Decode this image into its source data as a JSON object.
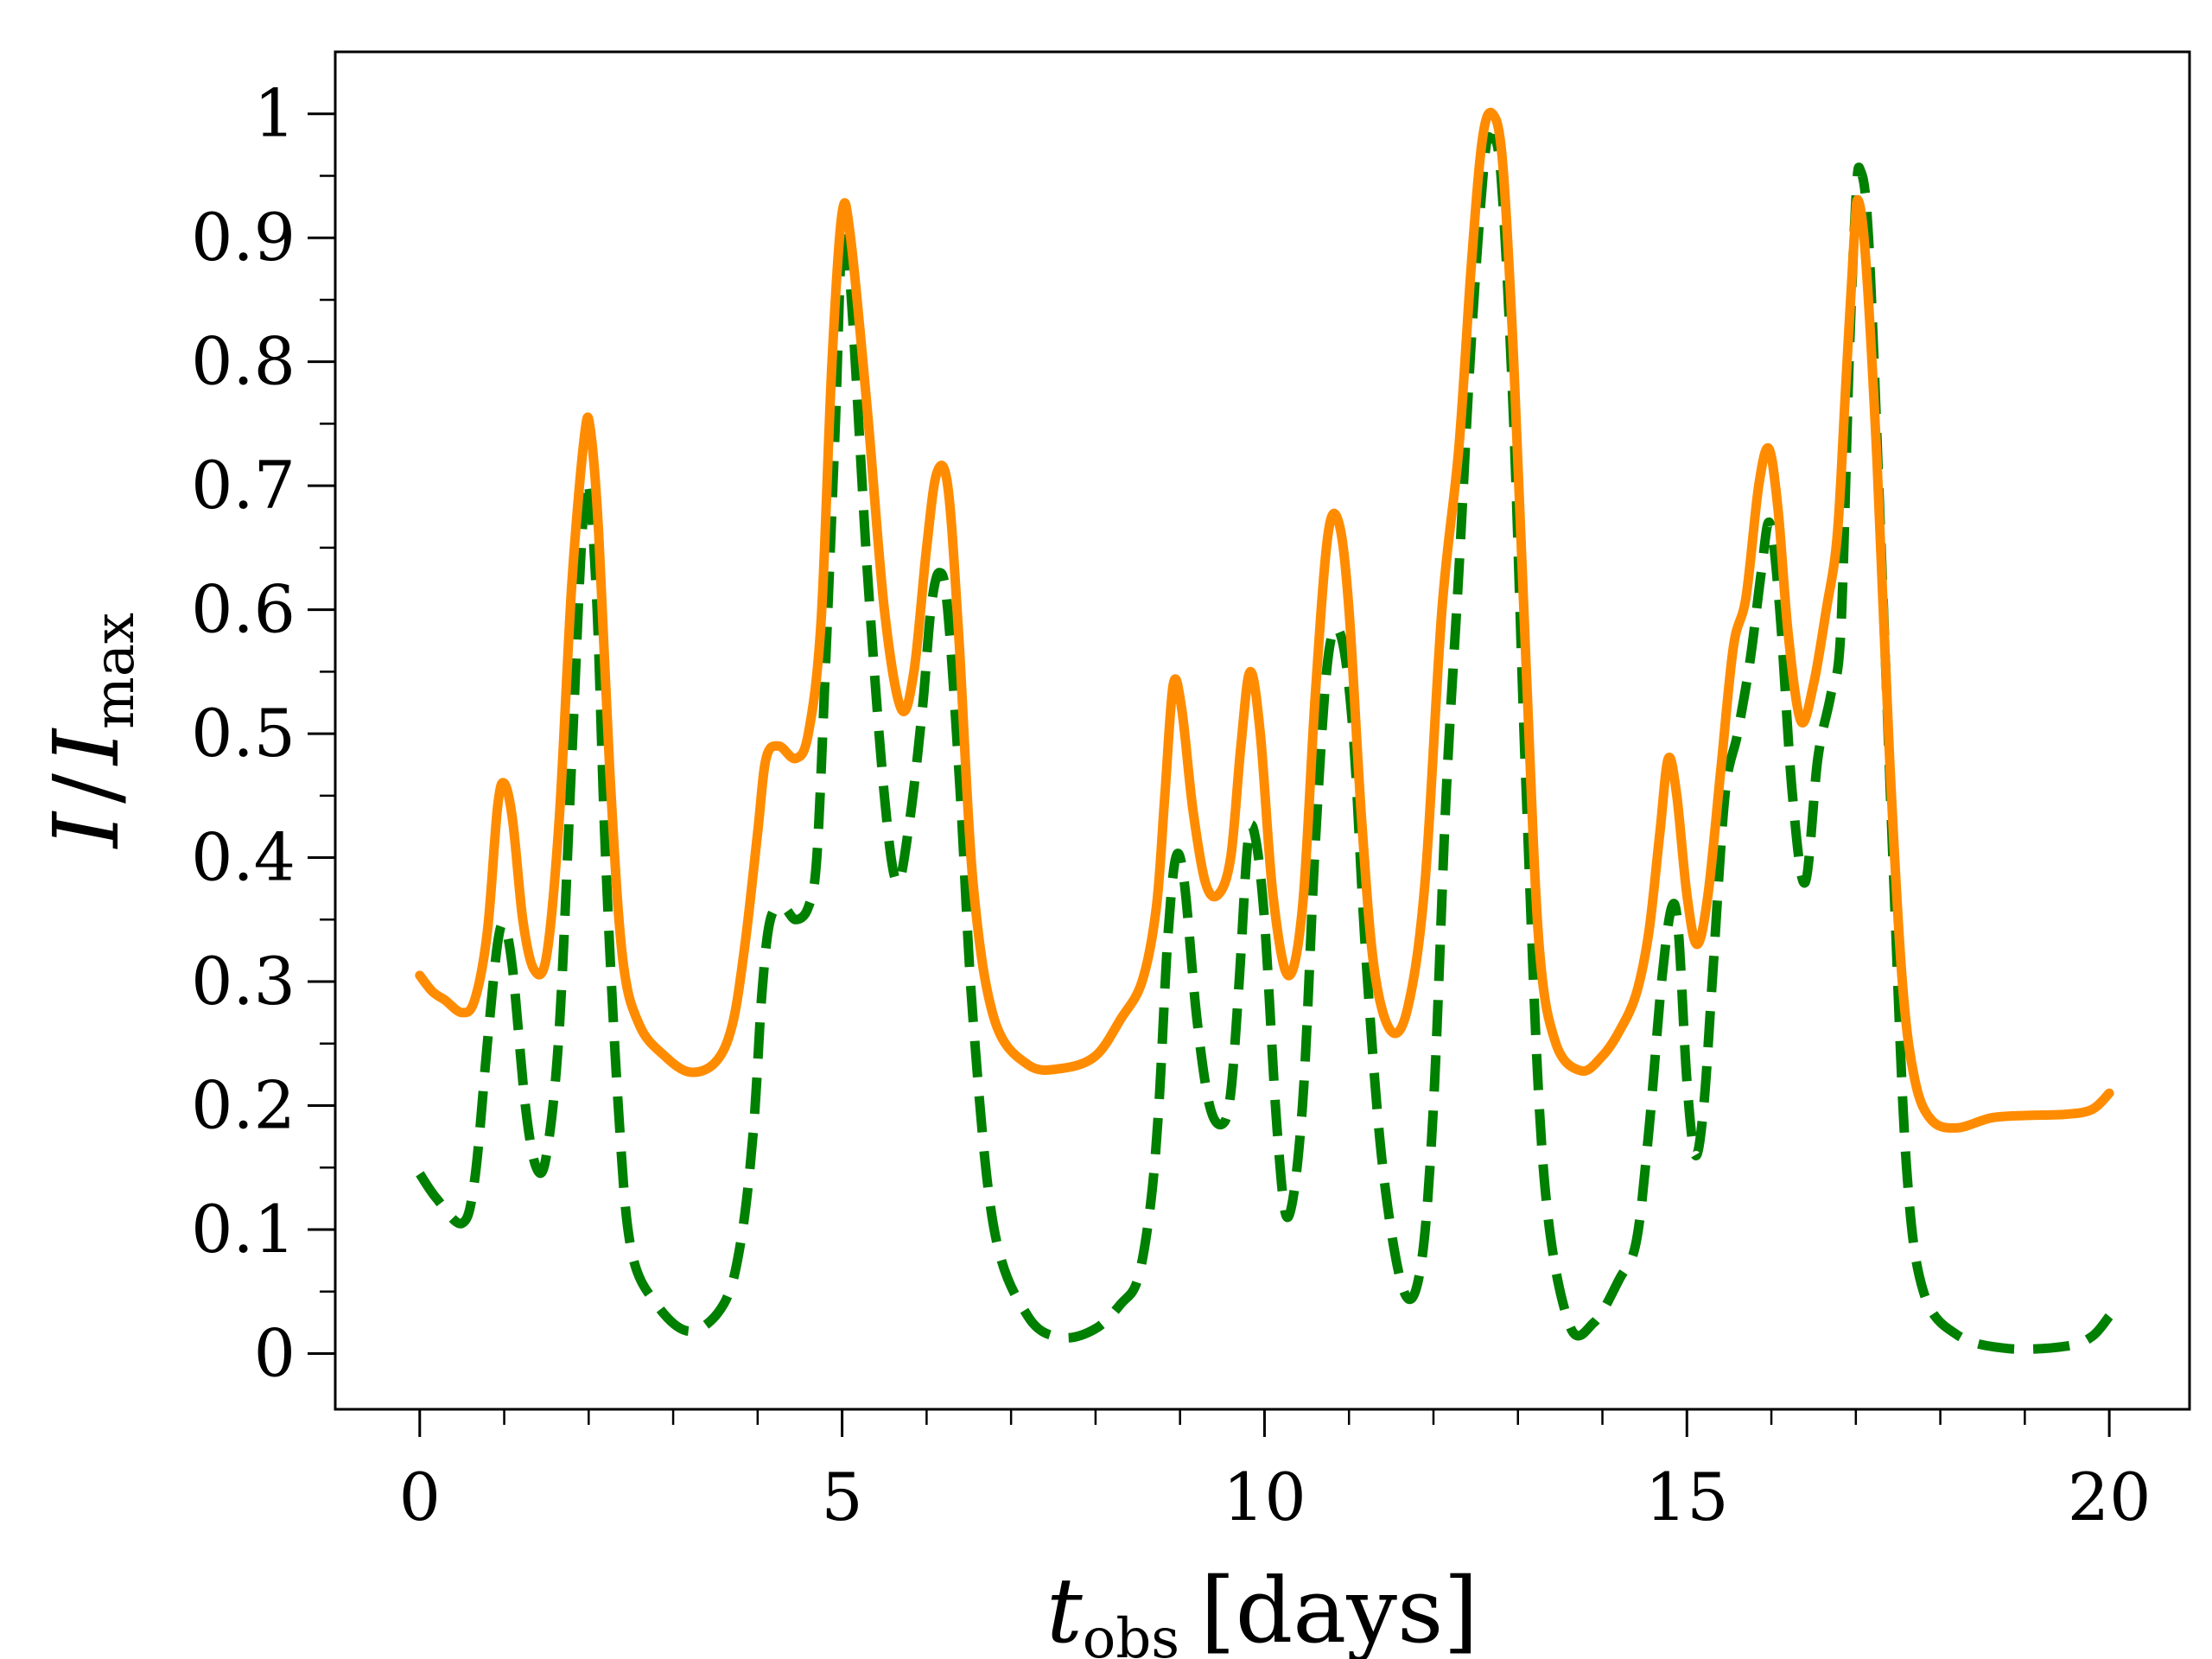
{
  "chart_data": {
    "type": "line",
    "title": "",
    "xlabel": {
      "main": "t",
      "sub": "obs",
      "unit": "[days]"
    },
    "ylabel": {
      "left": "I",
      "slash": "/",
      "right": "I",
      "sub": "max"
    },
    "xlim": [
      -1,
      20.95
    ],
    "ylim": [
      -0.045,
      1.05
    ],
    "x_major_ticks": [
      0,
      5,
      10,
      15,
      20
    ],
    "x_minor_ticks": [
      1,
      2,
      3,
      4,
      6,
      7,
      8,
      9,
      11,
      12,
      13,
      14,
      16,
      17,
      18,
      19
    ],
    "x_tick_labels": [
      "0",
      "5",
      "10",
      "15",
      "20"
    ],
    "y_major_ticks": [
      0,
      0.1,
      0.2,
      0.3,
      0.4,
      0.5,
      0.6,
      0.7,
      0.8,
      0.9,
      1
    ],
    "y_minor_ticks": [
      0.05,
      0.15,
      0.25,
      0.35,
      0.45,
      0.55,
      0.65,
      0.75,
      0.85,
      0.95
    ],
    "y_tick_labels": [
      "0",
      "0.1",
      "0.2",
      "0.3",
      "0.4",
      "0.5",
      "0.6",
      "0.7",
      "0.8",
      "0.9",
      "1"
    ],
    "series": [
      {
        "name": "dashed",
        "color": "#008000",
        "style": "dashed",
        "points": [
          [
            0,
            0.145
          ],
          [
            0.2,
            0.125
          ],
          [
            0.5,
            0.105
          ],
          [
            0.65,
            0.14
          ],
          [
            0.8,
            0.25
          ],
          [
            0.92,
            0.33
          ],
          [
            1.0,
            0.345
          ],
          [
            1.1,
            0.31
          ],
          [
            1.25,
            0.2
          ],
          [
            1.38,
            0.15
          ],
          [
            1.5,
            0.16
          ],
          [
            1.65,
            0.26
          ],
          [
            1.8,
            0.48
          ],
          [
            1.92,
            0.66
          ],
          [
            2.0,
            0.7
          ],
          [
            2.1,
            0.6
          ],
          [
            2.2,
            0.4
          ],
          [
            2.35,
            0.2
          ],
          [
            2.5,
            0.085
          ],
          [
            2.8,
            0.04
          ],
          [
            3.2,
            0.018
          ],
          [
            3.6,
            0.04
          ],
          [
            3.8,
            0.09
          ],
          [
            3.95,
            0.18
          ],
          [
            4.05,
            0.29
          ],
          [
            4.15,
            0.35
          ],
          [
            4.3,
            0.36
          ],
          [
            4.45,
            0.35
          ],
          [
            4.6,
            0.36
          ],
          [
            4.7,
            0.4
          ],
          [
            4.8,
            0.55
          ],
          [
            4.92,
            0.75
          ],
          [
            5.0,
            0.9
          ],
          [
            5.1,
            0.86
          ],
          [
            5.3,
            0.63
          ],
          [
            5.5,
            0.45
          ],
          [
            5.65,
            0.38
          ],
          [
            5.8,
            0.43
          ],
          [
            5.95,
            0.52
          ],
          [
            6.05,
            0.6
          ],
          [
            6.15,
            0.63
          ],
          [
            6.25,
            0.6
          ],
          [
            6.4,
            0.45
          ],
          [
            6.55,
            0.27
          ],
          [
            6.8,
            0.1
          ],
          [
            7.2,
            0.03
          ],
          [
            7.6,
            0.013
          ],
          [
            8.0,
            0.02
          ],
          [
            8.3,
            0.04
          ],
          [
            8.5,
            0.06
          ],
          [
            8.65,
            0.12
          ],
          [
            8.75,
            0.2
          ],
          [
            8.85,
            0.33
          ],
          [
            8.95,
            0.4
          ],
          [
            9.05,
            0.38
          ],
          [
            9.2,
            0.27
          ],
          [
            9.35,
            0.2
          ],
          [
            9.5,
            0.185
          ],
          [
            9.6,
            0.21
          ],
          [
            9.7,
            0.3
          ],
          [
            9.8,
            0.41
          ],
          [
            9.88,
            0.42
          ],
          [
            10.0,
            0.35
          ],
          [
            10.15,
            0.18
          ],
          [
            10.28,
            0.11
          ],
          [
            10.45,
            0.2
          ],
          [
            10.6,
            0.41
          ],
          [
            10.75,
            0.56
          ],
          [
            10.9,
            0.58
          ],
          [
            11.05,
            0.5
          ],
          [
            11.2,
            0.32
          ],
          [
            11.4,
            0.15
          ],
          [
            11.65,
            0.05
          ],
          [
            11.85,
            0.07
          ],
          [
            12.0,
            0.2
          ],
          [
            12.15,
            0.45
          ],
          [
            12.3,
            0.63
          ],
          [
            12.45,
            0.82
          ],
          [
            12.6,
            0.96
          ],
          [
            12.68,
            0.98
          ],
          [
            12.8,
            0.95
          ],
          [
            12.95,
            0.75
          ],
          [
            13.1,
            0.45
          ],
          [
            13.3,
            0.15
          ],
          [
            13.6,
            0.025
          ],
          [
            13.9,
            0.025
          ],
          [
            14.2,
            0.06
          ],
          [
            14.4,
            0.09
          ],
          [
            14.55,
            0.18
          ],
          [
            14.7,
            0.3
          ],
          [
            14.82,
            0.36
          ],
          [
            14.9,
            0.34
          ],
          [
            15.0,
            0.22
          ],
          [
            15.1,
            0.16
          ],
          [
            15.2,
            0.2
          ],
          [
            15.3,
            0.3
          ],
          [
            15.45,
            0.45
          ],
          [
            15.6,
            0.5
          ],
          [
            15.75,
            0.56
          ],
          [
            15.88,
            0.63
          ],
          [
            15.98,
            0.67
          ],
          [
            16.1,
            0.6
          ],
          [
            16.25,
            0.45
          ],
          [
            16.4,
            0.38
          ],
          [
            16.55,
            0.48
          ],
          [
            16.7,
            0.53
          ],
          [
            16.82,
            0.58
          ],
          [
            16.92,
            0.8
          ],
          [
            17.0,
            0.93
          ],
          [
            17.05,
            0.955
          ],
          [
            17.15,
            0.9
          ],
          [
            17.3,
            0.65
          ],
          [
            17.45,
            0.38
          ],
          [
            17.6,
            0.15
          ],
          [
            17.8,
            0.05
          ],
          [
            18.2,
            0.015
          ],
          [
            18.8,
            0.004
          ],
          [
            19.5,
            0.006
          ],
          [
            19.8,
            0.014
          ],
          [
            20.0,
            0.03
          ]
        ]
      },
      {
        "name": "solid",
        "color": "#ff8c00",
        "style": "solid",
        "points": [
          [
            0,
            0.305
          ],
          [
            0.15,
            0.292
          ],
          [
            0.3,
            0.285
          ],
          [
            0.5,
            0.275
          ],
          [
            0.65,
            0.285
          ],
          [
            0.8,
            0.34
          ],
          [
            0.92,
            0.44
          ],
          [
            1.0,
            0.46
          ],
          [
            1.1,
            0.43
          ],
          [
            1.22,
            0.35
          ],
          [
            1.35,
            0.31
          ],
          [
            1.5,
            0.32
          ],
          [
            1.65,
            0.43
          ],
          [
            1.8,
            0.62
          ],
          [
            1.95,
            0.74
          ],
          [
            2.02,
            0.745
          ],
          [
            2.12,
            0.66
          ],
          [
            2.25,
            0.47
          ],
          [
            2.4,
            0.32
          ],
          [
            2.6,
            0.265
          ],
          [
            2.9,
            0.24
          ],
          [
            3.2,
            0.227
          ],
          [
            3.5,
            0.235
          ],
          [
            3.7,
            0.265
          ],
          [
            3.85,
            0.33
          ],
          [
            4.0,
            0.42
          ],
          [
            4.1,
            0.48
          ],
          [
            4.25,
            0.49
          ],
          [
            4.45,
            0.48
          ],
          [
            4.6,
            0.5
          ],
          [
            4.75,
            0.59
          ],
          [
            4.88,
            0.8
          ],
          [
            5.0,
            0.92
          ],
          [
            5.1,
            0.9
          ],
          [
            5.3,
            0.76
          ],
          [
            5.5,
            0.6
          ],
          [
            5.7,
            0.52
          ],
          [
            5.85,
            0.55
          ],
          [
            6.0,
            0.65
          ],
          [
            6.12,
            0.71
          ],
          [
            6.25,
            0.7
          ],
          [
            6.38,
            0.58
          ],
          [
            6.55,
            0.38
          ],
          [
            6.8,
            0.27
          ],
          [
            7.2,
            0.233
          ],
          [
            7.6,
            0.23
          ],
          [
            8.0,
            0.24
          ],
          [
            8.3,
            0.27
          ],
          [
            8.55,
            0.3
          ],
          [
            8.72,
            0.36
          ],
          [
            8.82,
            0.45
          ],
          [
            8.92,
            0.54
          ],
          [
            9.02,
            0.52
          ],
          [
            9.15,
            0.44
          ],
          [
            9.3,
            0.38
          ],
          [
            9.45,
            0.37
          ],
          [
            9.6,
            0.4
          ],
          [
            9.72,
            0.49
          ],
          [
            9.83,
            0.55
          ],
          [
            9.95,
            0.5
          ],
          [
            10.1,
            0.37
          ],
          [
            10.28,
            0.305
          ],
          [
            10.45,
            0.36
          ],
          [
            10.6,
            0.53
          ],
          [
            10.75,
            0.66
          ],
          [
            10.88,
            0.67
          ],
          [
            11.0,
            0.6
          ],
          [
            11.15,
            0.43
          ],
          [
            11.3,
            0.31
          ],
          [
            11.5,
            0.26
          ],
          [
            11.7,
            0.28
          ],
          [
            11.9,
            0.38
          ],
          [
            12.1,
            0.6
          ],
          [
            12.3,
            0.73
          ],
          [
            12.45,
            0.88
          ],
          [
            12.58,
            0.98
          ],
          [
            12.7,
            1.0
          ],
          [
            12.82,
            0.96
          ],
          [
            12.95,
            0.8
          ],
          [
            13.1,
            0.55
          ],
          [
            13.25,
            0.33
          ],
          [
            13.45,
            0.25
          ],
          [
            13.75,
            0.228
          ],
          [
            14.0,
            0.24
          ],
          [
            14.2,
            0.26
          ],
          [
            14.4,
            0.29
          ],
          [
            14.55,
            0.34
          ],
          [
            14.68,
            0.42
          ],
          [
            14.78,
            0.48
          ],
          [
            14.88,
            0.45
          ],
          [
            15.0,
            0.37
          ],
          [
            15.12,
            0.33
          ],
          [
            15.25,
            0.37
          ],
          [
            15.4,
            0.47
          ],
          [
            15.55,
            0.57
          ],
          [
            15.7,
            0.61
          ],
          [
            15.85,
            0.7
          ],
          [
            15.97,
            0.73
          ],
          [
            16.08,
            0.68
          ],
          [
            16.2,
            0.58
          ],
          [
            16.35,
            0.51
          ],
          [
            16.5,
            0.54
          ],
          [
            16.65,
            0.6
          ],
          [
            16.78,
            0.66
          ],
          [
            16.88,
            0.78
          ],
          [
            16.98,
            0.9
          ],
          [
            17.03,
            0.93
          ],
          [
            17.12,
            0.88
          ],
          [
            17.25,
            0.72
          ],
          [
            17.4,
            0.48
          ],
          [
            17.55,
            0.3
          ],
          [
            17.7,
            0.22
          ],
          [
            17.9,
            0.188
          ],
          [
            18.2,
            0.182
          ],
          [
            18.6,
            0.19
          ],
          [
            19.0,
            0.192
          ],
          [
            19.5,
            0.193
          ],
          [
            19.8,
            0.197
          ],
          [
            20.0,
            0.21
          ]
        ]
      }
    ]
  }
}
